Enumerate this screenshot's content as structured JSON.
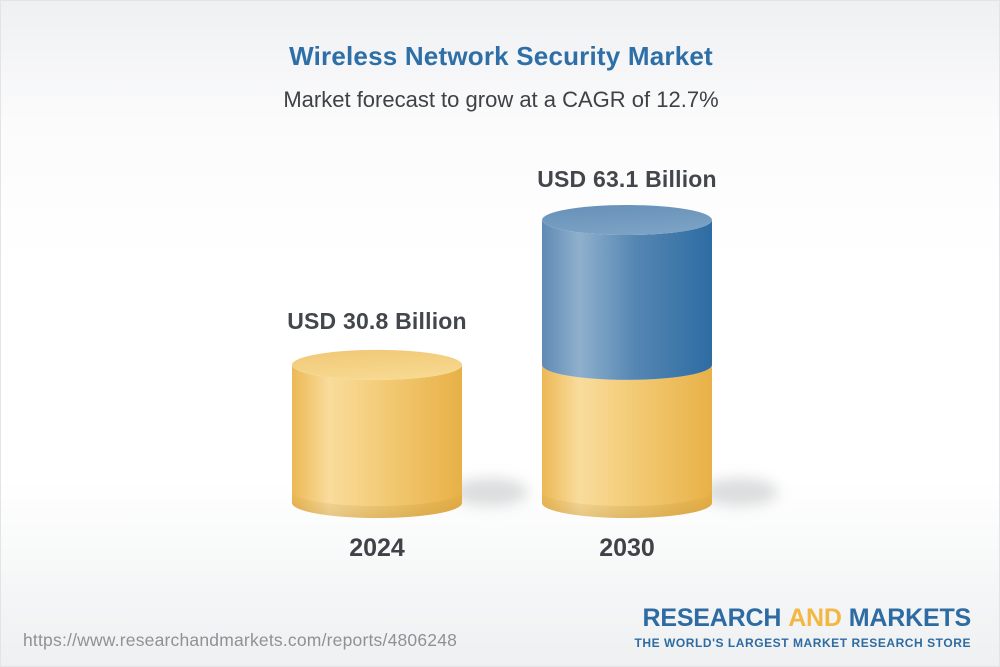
{
  "header": {
    "title": "Wireless Network Security Market",
    "subtitle": "Market forecast to grow at a CAGR of 12.7%"
  },
  "footer": {
    "url": "https://www.researchandmarkets.com/reports/4806248",
    "logo": {
      "word1": "RESEARCH",
      "word2": "AND",
      "word3": "MARKETS",
      "tagline": "THE WORLD'S LARGEST MARKET RESEARCH STORE"
    }
  },
  "colors": {
    "title_blue": "#2d6fa6",
    "text_dark": "#43474c",
    "url_gray": "#8f9295",
    "logo_blue": "#2e6ba3",
    "logo_gold": "#f2b843",
    "bar_gold": "#f2c874",
    "bar_blue": "#4a7aa9"
  },
  "chart_data": {
    "type": "bar",
    "subtype": "3d-cylinder-stacked",
    "title": "Wireless Network Security Market",
    "subtitle": "Market forecast to grow at a CAGR of 12.7%",
    "unit": "USD Billion",
    "cagr_percent": 12.7,
    "categories": [
      "2024",
      "2030"
    ],
    "values": [
      30.8,
      63.1
    ],
    "ylim": [
      0,
      63.1
    ],
    "grid": false,
    "legend": "none",
    "bars": [
      {
        "category": "2024",
        "label": "USD 30.8 Billion",
        "total": 30.8,
        "segments": [
          {
            "name": "base-2024",
            "value": 30.8,
            "color_key": "gold"
          }
        ]
      },
      {
        "category": "2030",
        "label": "USD 63.1 Billion",
        "total": 63.1,
        "segments": [
          {
            "name": "base-2024",
            "value": 30.8,
            "color_key": "gold"
          },
          {
            "name": "growth-to-2030",
            "value": 32.3,
            "color_key": "blue"
          }
        ]
      }
    ]
  }
}
